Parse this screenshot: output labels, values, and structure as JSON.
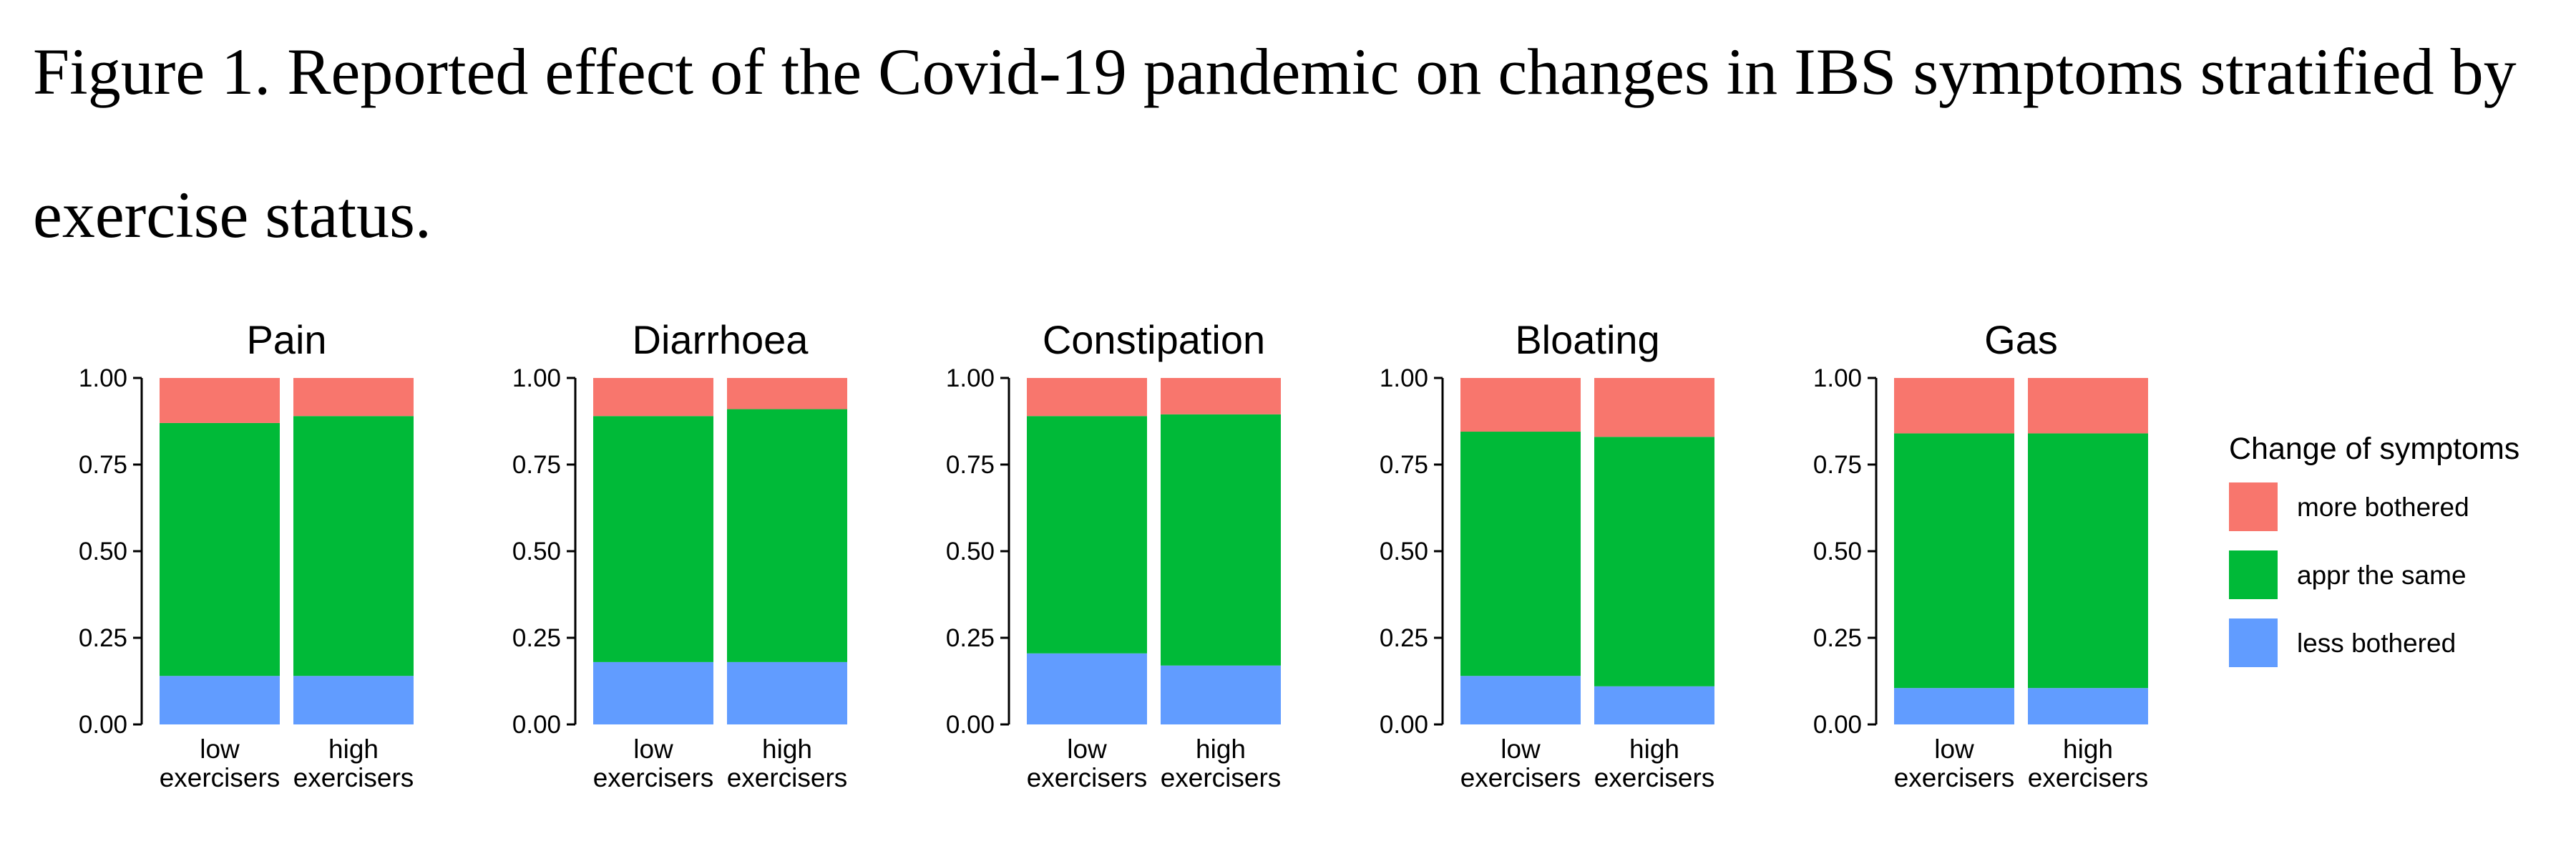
{
  "figure": {
    "caption": "Figure 1.  Reported effect of the Covid-19 pandemic on changes in IBS symptoms stratified by exercise status."
  },
  "chart_data": {
    "type": "bar",
    "stacked": true,
    "ylim": [
      0,
      1
    ],
    "y_ticks": [
      "0.00",
      "0.25",
      "0.50",
      "0.75",
      "1.00"
    ],
    "categories": [
      "low exercisers",
      "high exercisers"
    ],
    "legend": {
      "title": "Change of symptoms",
      "position": "right",
      "entries": [
        {
          "name": "more bothered",
          "color": "#F8766D"
        },
        {
          "name": "appr the same",
          "color": "#00BA38"
        },
        {
          "name": "less bothered",
          "color": "#619CFF"
        }
      ]
    },
    "panels": [
      {
        "title": "Pain",
        "bars": [
          {
            "less bothered": 0.14,
            "appr the same": 0.73,
            "more bothered": 0.13
          },
          {
            "less bothered": 0.14,
            "appr the same": 0.75,
            "more bothered": 0.11
          }
        ]
      },
      {
        "title": "Diarrhoea",
        "bars": [
          {
            "less bothered": 0.18,
            "appr the same": 0.71,
            "more bothered": 0.11
          },
          {
            "less bothered": 0.18,
            "appr the same": 0.73,
            "more bothered": 0.09
          }
        ]
      },
      {
        "title": "Constipation",
        "bars": [
          {
            "less bothered": 0.205,
            "appr the same": 0.685,
            "more bothered": 0.11
          },
          {
            "less bothered": 0.17,
            "appr the same": 0.725,
            "more bothered": 0.105
          }
        ]
      },
      {
        "title": "Bloating",
        "bars": [
          {
            "less bothered": 0.14,
            "appr the same": 0.705,
            "more bothered": 0.155
          },
          {
            "less bothered": 0.11,
            "appr the same": 0.72,
            "more bothered": 0.17
          }
        ]
      },
      {
        "title": "Gas",
        "bars": [
          {
            "less bothered": 0.105,
            "appr the same": 0.735,
            "more bothered": 0.16
          },
          {
            "less bothered": 0.105,
            "appr the same": 0.735,
            "more bothered": 0.16
          }
        ]
      }
    ]
  }
}
